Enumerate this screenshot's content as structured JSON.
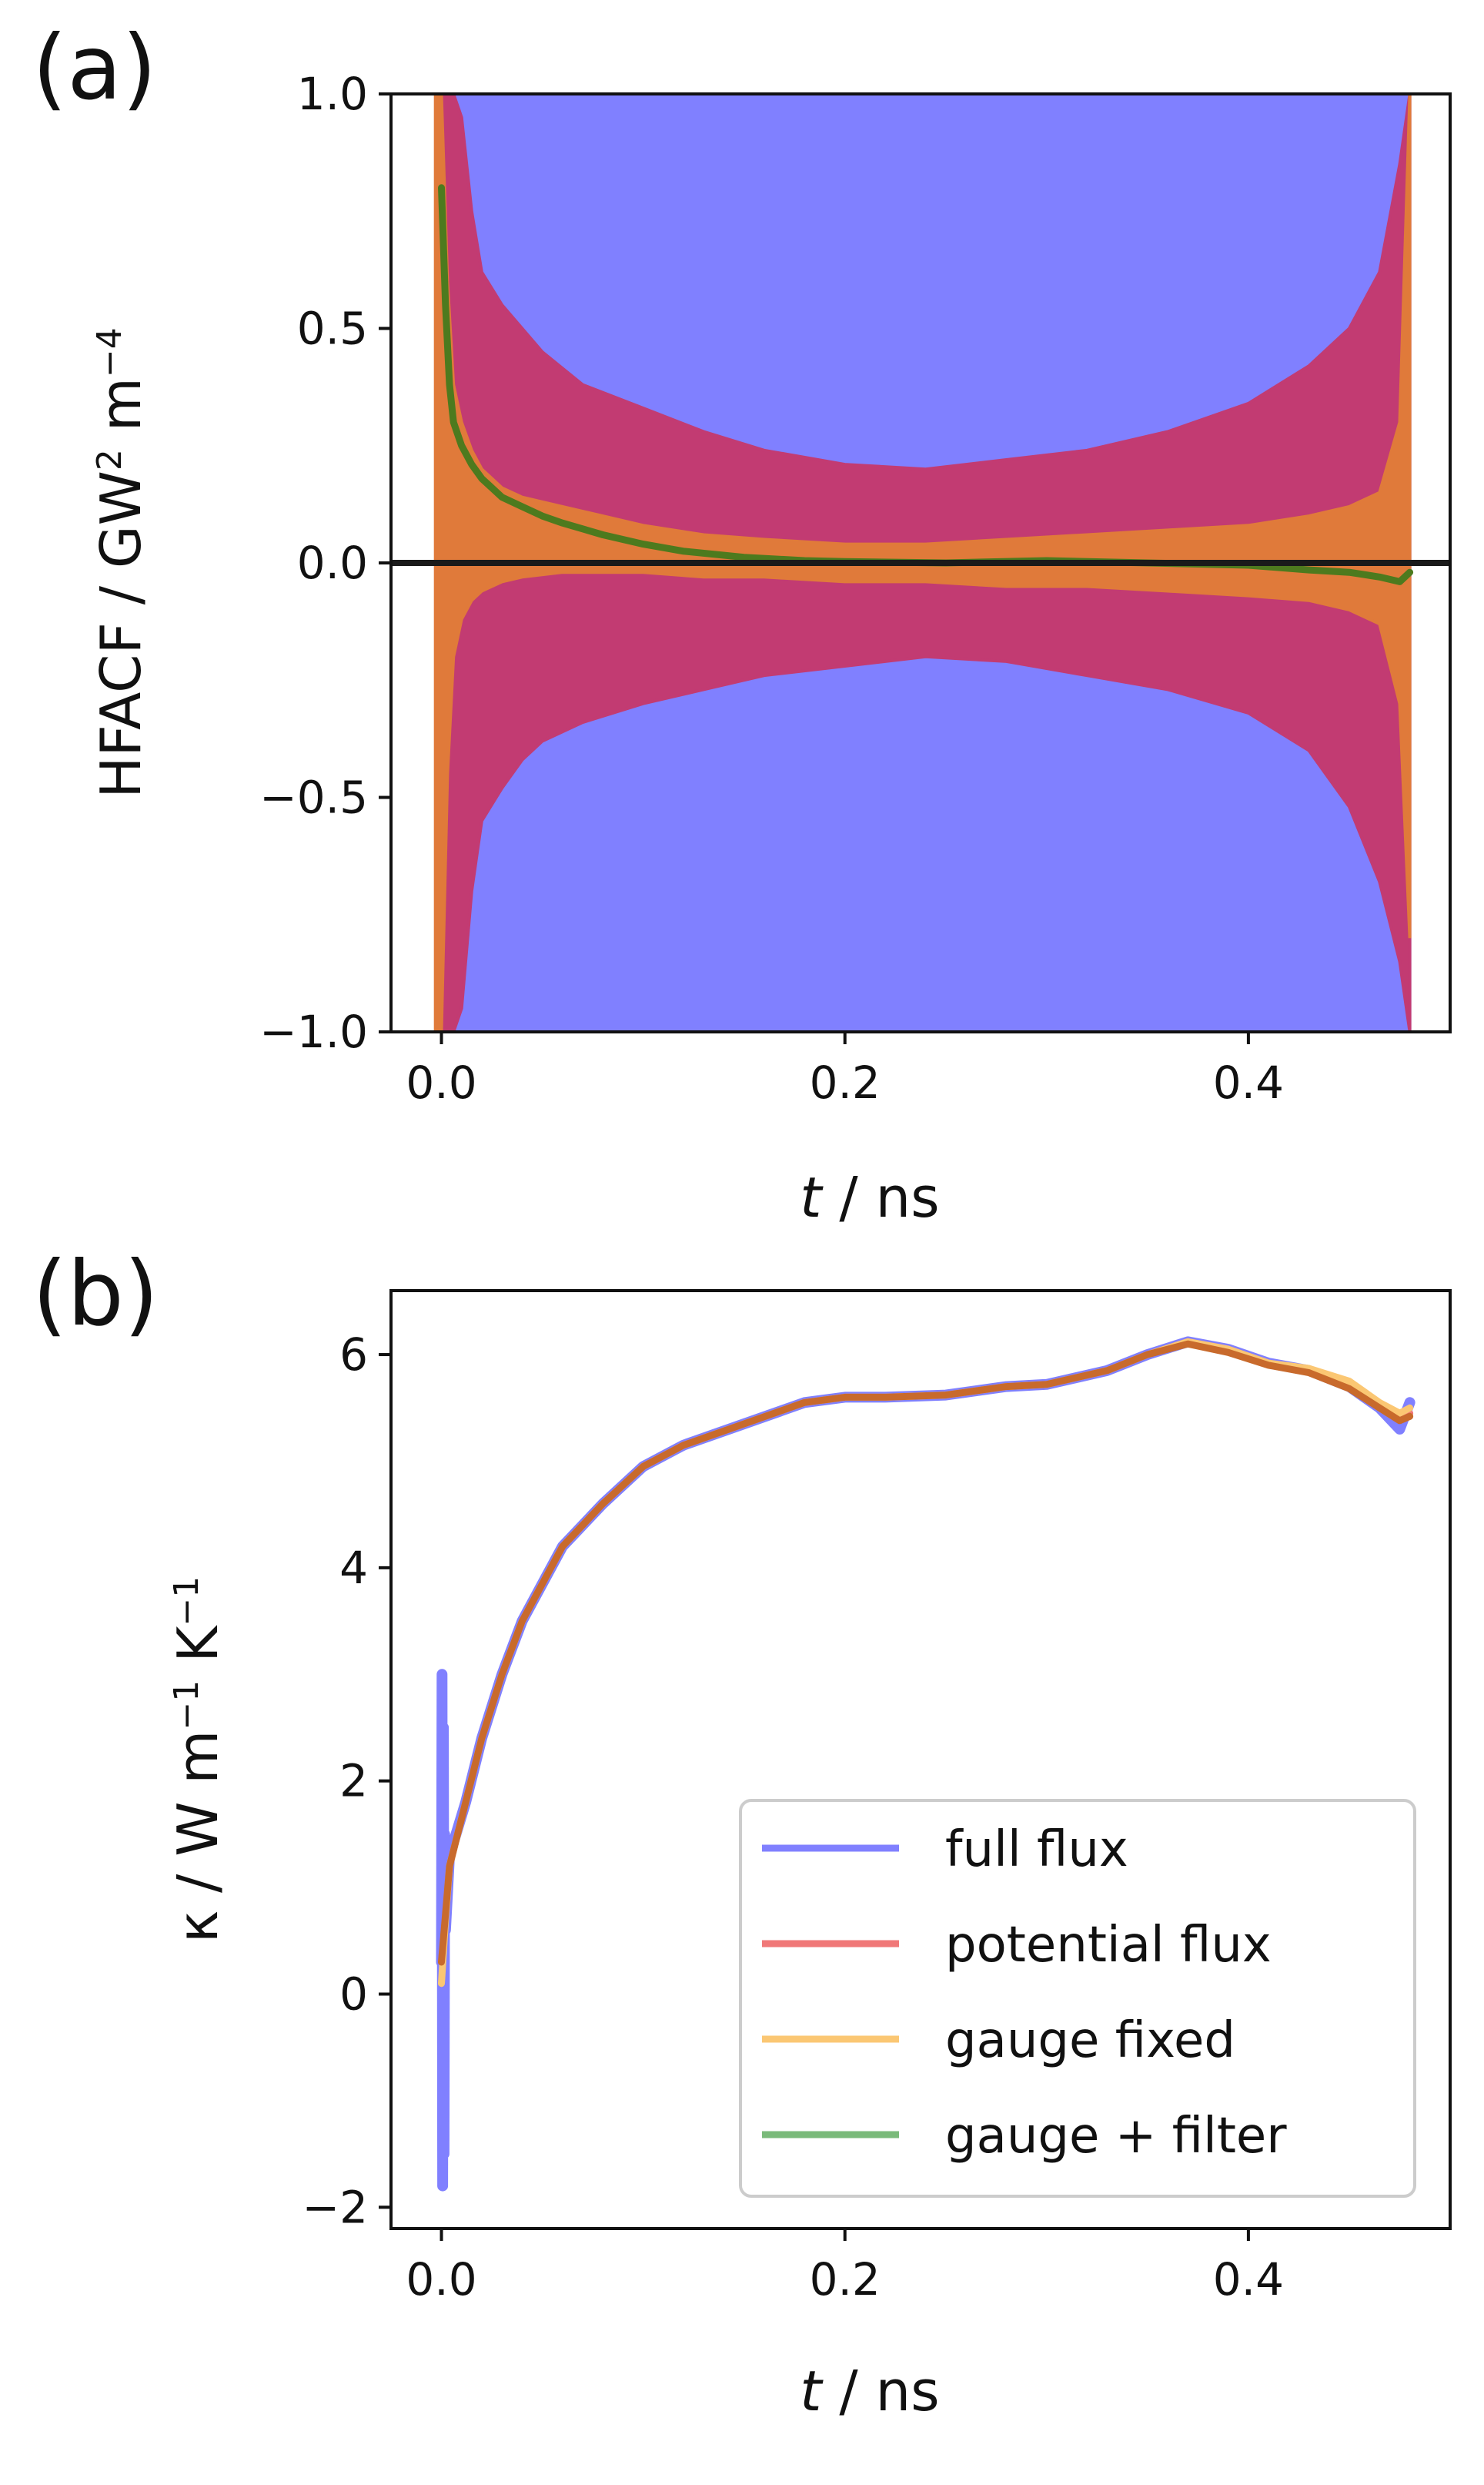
{
  "chart_data": [
    {
      "panel": "(a)",
      "type": "line",
      "title": "",
      "xlabel_italic": "t",
      "xlabel_rest": " / ns",
      "ylabel_main": "HFACF / GW",
      "ylabel_sup1": "2",
      "ylabel_mid": " m",
      "ylabel_sup2": "−4",
      "xlim": [
        -0.025,
        0.5
      ],
      "ylim": [
        -1.0,
        1.0
      ],
      "xticks": [
        0.0,
        0.2,
        0.4
      ],
      "xtick_labels": [
        "0.0",
        "0.2",
        "0.4"
      ],
      "yticks": [
        1.0,
        0.5,
        0.0,
        -0.5,
        -1.0
      ],
      "ytick_labels": [
        "1.0",
        "0.5",
        "0.0",
        "−0.5",
        "−1.0"
      ],
      "zero_line": 0.0,
      "series": [
        {
          "name": "full flux",
          "color": "#8080ff",
          "x": [
            -0.002,
            0.48
          ],
          "upper": [
            1.0,
            1.0
          ],
          "lower": [
            -1.0,
            -1.0
          ]
        },
        {
          "name": "potential flux",
          "color": "#c23b72",
          "x": [
            0.0,
            0.003,
            0.006,
            0.01,
            0.015,
            0.02,
            0.03,
            0.04,
            0.05,
            0.07,
            0.1,
            0.13,
            0.16,
            0.2,
            0.24,
            0.28,
            0.32,
            0.36,
            0.4,
            0.43,
            0.45,
            0.465,
            0.475,
            0.48
          ],
          "upper": [
            1.0,
            1.0,
            1.0,
            0.95,
            0.75,
            0.62,
            0.55,
            0.5,
            0.45,
            0.38,
            0.33,
            0.28,
            0.24,
            0.21,
            0.2,
            0.22,
            0.24,
            0.28,
            0.34,
            0.42,
            0.5,
            0.62,
            0.85,
            1.0
          ],
          "lower": [
            -1.0,
            -1.0,
            -1.0,
            -0.95,
            -0.7,
            -0.55,
            -0.48,
            -0.42,
            -0.38,
            -0.34,
            -0.3,
            -0.27,
            -0.24,
            -0.22,
            -0.2,
            -0.21,
            -0.24,
            -0.27,
            -0.32,
            -0.4,
            -0.52,
            -0.68,
            -0.85,
            -1.0
          ]
        },
        {
          "name": "gauge fixed",
          "color": "#e07a3a",
          "x": [
            -0.003,
            0.0,
            0.003,
            0.006,
            0.01,
            0.015,
            0.02,
            0.03,
            0.04,
            0.06,
            0.08,
            0.1,
            0.13,
            0.16,
            0.2,
            0.24,
            0.28,
            0.32,
            0.36,
            0.4,
            0.43,
            0.45,
            0.465,
            0.475,
            0.48
          ],
          "upper": [
            1.0,
            1.0,
            0.6,
            0.38,
            0.3,
            0.24,
            0.2,
            0.16,
            0.14,
            0.12,
            0.1,
            0.08,
            0.06,
            0.05,
            0.04,
            0.04,
            0.05,
            0.06,
            0.07,
            0.08,
            0.1,
            0.12,
            0.15,
            0.3,
            1.0
          ],
          "lower": [
            -1.0,
            -1.0,
            -0.45,
            -0.2,
            -0.12,
            -0.08,
            -0.06,
            -0.04,
            -0.03,
            -0.02,
            -0.02,
            -0.02,
            -0.03,
            -0.03,
            -0.04,
            -0.04,
            -0.05,
            -0.05,
            -0.06,
            -0.07,
            -0.08,
            -0.1,
            -0.13,
            -0.3,
            -0.8
          ]
        },
        {
          "name": "gauge + filter",
          "color": "#4d7a1e",
          "x": [
            0.0,
            0.002,
            0.004,
            0.006,
            0.01,
            0.015,
            0.02,
            0.03,
            0.04,
            0.05,
            0.06,
            0.08,
            0.1,
            0.12,
            0.15,
            0.18,
            0.2,
            0.25,
            0.3,
            0.35,
            0.4,
            0.43,
            0.45,
            0.465,
            0.475,
            0.48
          ],
          "y": [
            0.8,
            0.55,
            0.38,
            0.3,
            0.25,
            0.21,
            0.18,
            0.14,
            0.12,
            0.1,
            0.085,
            0.06,
            0.04,
            0.025,
            0.012,
            0.005,
            0.003,
            0.0,
            0.005,
            0.0,
            -0.005,
            -0.015,
            -0.02,
            -0.03,
            -0.04,
            -0.02
          ]
        }
      ]
    },
    {
      "panel": "(b)",
      "type": "line",
      "title": "",
      "xlabel_italic": "t",
      "xlabel_rest": " / ns",
      "ylabel_main": "κ / W m",
      "ylabel_sup1": "−1",
      "ylabel_mid": " K",
      "ylabel_sup2": "−1",
      "xlim": [
        -0.025,
        0.5
      ],
      "ylim": [
        -2.2,
        6.6
      ],
      "xticks": [
        0.0,
        0.2,
        0.4
      ],
      "xtick_labels": [
        "0.0",
        "0.2",
        "0.4"
      ],
      "yticks": [
        6,
        4,
        2,
        0,
        -2
      ],
      "ytick_labels": [
        "6",
        "4",
        "2",
        "0",
        "−2"
      ],
      "series": [
        {
          "name": "full flux",
          "color": "#8080ff",
          "x": [
            0.0,
            0.0003,
            0.0006,
            0.001,
            0.0013,
            0.0016,
            0.002,
            0.004,
            0.008,
            0.012,
            0.02,
            0.03,
            0.04,
            0.06,
            0.08,
            0.1,
            0.12,
            0.15,
            0.18,
            0.2,
            0.22,
            0.25,
            0.28,
            0.3,
            0.33,
            0.35,
            0.37,
            0.39,
            0.41,
            0.43,
            0.45,
            0.465,
            0.475,
            0.48
          ],
          "y": [
            0.3,
            3.0,
            -1.8,
            2.5,
            -1.5,
            1.5,
            0.6,
            1.3,
            1.55,
            1.8,
            2.4,
            3.0,
            3.5,
            4.2,
            4.6,
            4.95,
            5.15,
            5.35,
            5.55,
            5.6,
            5.6,
            5.62,
            5.7,
            5.72,
            5.85,
            6.0,
            6.12,
            6.05,
            5.92,
            5.85,
            5.7,
            5.5,
            5.3,
            5.55
          ]
        },
        {
          "name": "potential flux",
          "color": "#f07878",
          "x": [
            0.0,
            0.002,
            0.004,
            0.008,
            0.012,
            0.02,
            0.03,
            0.04,
            0.06,
            0.08,
            0.1,
            0.12,
            0.15,
            0.18,
            0.2,
            0.22,
            0.25,
            0.28,
            0.3,
            0.33,
            0.35,
            0.37,
            0.39,
            0.41,
            0.43,
            0.45,
            0.465,
            0.475,
            0.48
          ],
          "y": [
            0.3,
            0.7,
            1.2,
            1.5,
            1.8,
            2.4,
            3.0,
            3.5,
            4.2,
            4.6,
            4.95,
            5.15,
            5.35,
            5.55,
            5.6,
            5.6,
            5.62,
            5.7,
            5.72,
            5.85,
            6.0,
            6.12,
            6.05,
            5.92,
            5.85,
            5.7,
            5.5,
            5.4,
            5.45
          ]
        },
        {
          "name": "gauge fixed",
          "color": "#fbc773",
          "x": [
            0.0,
            0.002,
            0.004,
            0.008,
            0.012,
            0.02,
            0.03,
            0.04,
            0.06,
            0.08,
            0.1,
            0.12,
            0.15,
            0.18,
            0.2,
            0.22,
            0.25,
            0.28,
            0.3,
            0.33,
            0.35,
            0.37,
            0.39,
            0.41,
            0.43,
            0.45,
            0.465,
            0.475,
            0.48
          ],
          "y": [
            0.1,
            0.7,
            1.2,
            1.5,
            1.8,
            2.4,
            3.0,
            3.5,
            4.2,
            4.6,
            4.95,
            5.15,
            5.35,
            5.55,
            5.6,
            5.6,
            5.62,
            5.7,
            5.72,
            5.85,
            6.0,
            6.12,
            6.05,
            5.92,
            5.87,
            5.75,
            5.55,
            5.45,
            5.5
          ]
        },
        {
          "name": "gauge + filter",
          "color": "#c86a2c",
          "x": [
            0.0,
            0.002,
            0.004,
            0.008,
            0.012,
            0.02,
            0.03,
            0.04,
            0.06,
            0.08,
            0.1,
            0.12,
            0.15,
            0.18,
            0.2,
            0.22,
            0.25,
            0.28,
            0.3,
            0.33,
            0.35,
            0.37,
            0.39,
            0.41,
            0.43,
            0.45,
            0.465,
            0.475,
            0.48
          ],
          "y": [
            0.3,
            0.75,
            1.2,
            1.5,
            1.8,
            2.4,
            3.0,
            3.5,
            4.2,
            4.6,
            4.95,
            5.15,
            5.35,
            5.55,
            5.6,
            5.6,
            5.62,
            5.7,
            5.72,
            5.85,
            6.0,
            6.1,
            6.02,
            5.9,
            5.83,
            5.68,
            5.5,
            5.38,
            5.42
          ]
        }
      ],
      "legend": {
        "placement": "lower-right",
        "entries": [
          {
            "label": "full flux",
            "color": "#8080ff"
          },
          {
            "label": "potential flux",
            "color": "#f07878"
          },
          {
            "label": "gauge fixed",
            "color": "#fbc773"
          },
          {
            "label": "gauge + filter",
            "color": "#7aba7a"
          }
        ]
      }
    }
  ]
}
